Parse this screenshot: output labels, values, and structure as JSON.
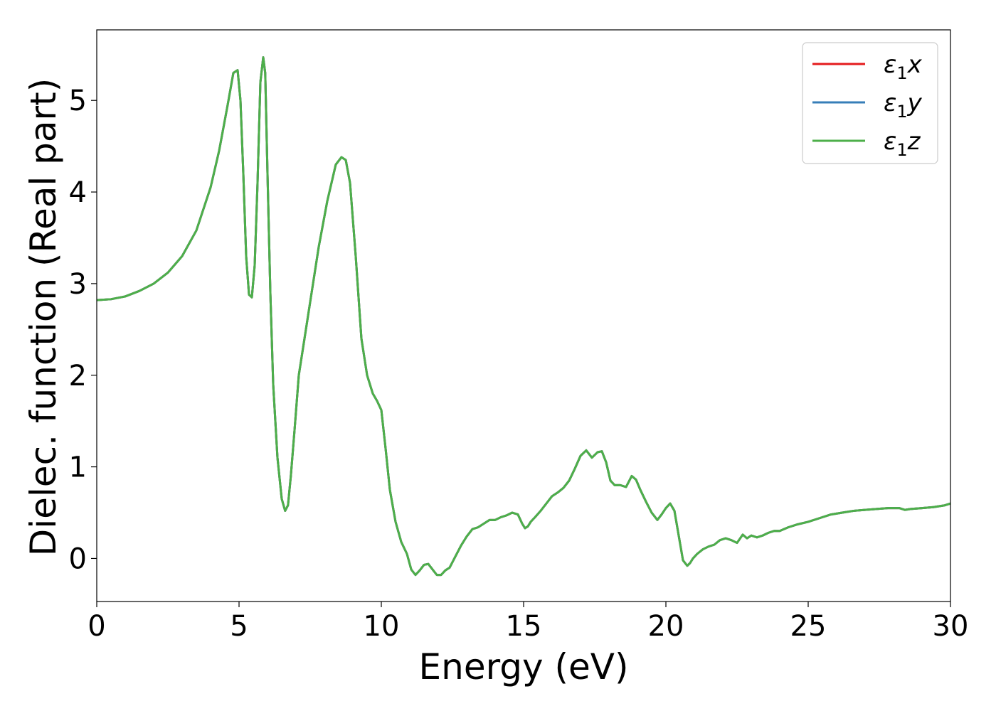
{
  "chart_data": {
    "type": "line",
    "title": "",
    "xlabel": "Energy (eV)",
    "ylabel": "Dielec. function (Real part)",
    "xlim": [
      0,
      30
    ],
    "ylim": [
      -0.47,
      5.77
    ],
    "xticks": [
      0,
      5,
      10,
      15,
      20,
      25,
      30
    ],
    "yticks": [
      0,
      1,
      2,
      3,
      4,
      5
    ],
    "grid": false,
    "legend_position": "top-right",
    "series": [
      {
        "name": "ε₁x",
        "legend_base": "ε",
        "legend_sub": "1",
        "legend_suffix": "x",
        "color": "#e41a1c",
        "x": [
          0,
          0.5,
          1,
          1.5,
          2,
          2.5,
          3,
          3.5,
          4,
          4.3,
          4.6,
          4.8,
          4.95,
          5.05,
          5.15,
          5.25,
          5.35,
          5.45,
          5.55,
          5.65,
          5.75,
          5.85,
          5.92,
          6.0,
          6.1,
          6.2,
          6.35,
          6.5,
          6.62,
          6.72,
          6.82,
          6.95,
          7.1,
          7.3,
          7.5,
          7.8,
          8.1,
          8.4,
          8.6,
          8.75,
          8.9,
          9.1,
          9.3,
          9.5,
          9.7,
          9.85,
          10.0,
          10.15,
          10.3,
          10.5,
          10.7,
          10.9,
          11.05,
          11.2,
          11.35,
          11.5,
          11.65,
          11.8,
          11.95,
          12.1,
          12.25,
          12.4,
          12.6,
          12.8,
          13.0,
          13.2,
          13.4,
          13.6,
          13.8,
          14.0,
          14.2,
          14.4,
          14.6,
          14.8,
          14.95,
          15.05,
          15.15,
          15.25,
          15.4,
          15.6,
          15.8,
          16.0,
          16.2,
          16.4,
          16.6,
          16.8,
          17.0,
          17.2,
          17.4,
          17.6,
          17.75,
          17.9,
          18.05,
          18.2,
          18.4,
          18.6,
          18.8,
          18.95,
          19.1,
          19.3,
          19.5,
          19.7,
          19.85,
          20.0,
          20.15,
          20.3,
          20.45,
          20.6,
          20.75,
          20.85,
          20.95,
          21.1,
          21.3,
          21.5,
          21.7,
          21.9,
          22.1,
          22.3,
          22.5,
          22.7,
          22.85,
          23.0,
          23.2,
          23.4,
          23.6,
          23.8,
          24.0,
          24.3,
          24.6,
          25.0,
          25.4,
          25.8,
          26.2,
          26.6,
          27.0,
          27.4,
          27.8,
          28.2,
          28.4,
          28.6,
          29.0,
          29.4,
          29.8,
          30.0
        ],
        "y": [
          2.82,
          2.83,
          2.86,
          2.92,
          3.0,
          3.12,
          3.3,
          3.58,
          4.05,
          4.45,
          4.95,
          5.3,
          5.33,
          5.0,
          4.2,
          3.3,
          2.88,
          2.85,
          3.2,
          4.1,
          5.2,
          5.47,
          5.3,
          4.2,
          2.9,
          1.9,
          1.1,
          0.65,
          0.52,
          0.58,
          0.9,
          1.4,
          2.0,
          2.4,
          2.8,
          3.4,
          3.9,
          4.3,
          4.38,
          4.35,
          4.1,
          3.3,
          2.4,
          2.0,
          1.8,
          1.72,
          1.62,
          1.2,
          0.75,
          0.4,
          0.18,
          0.05,
          -0.12,
          -0.18,
          -0.13,
          -0.07,
          -0.06,
          -0.12,
          -0.18,
          -0.18,
          -0.13,
          -0.1,
          0.02,
          0.14,
          0.24,
          0.32,
          0.34,
          0.38,
          0.42,
          0.42,
          0.45,
          0.47,
          0.5,
          0.48,
          0.38,
          0.33,
          0.35,
          0.4,
          0.45,
          0.52,
          0.6,
          0.68,
          0.72,
          0.77,
          0.85,
          0.98,
          1.12,
          1.18,
          1.1,
          1.16,
          1.17,
          1.05,
          0.85,
          0.8,
          0.8,
          0.78,
          0.9,
          0.86,
          0.75,
          0.62,
          0.5,
          0.42,
          0.48,
          0.55,
          0.6,
          0.52,
          0.25,
          -0.02,
          -0.08,
          -0.05,
          0.0,
          0.05,
          0.1,
          0.13,
          0.15,
          0.2,
          0.22,
          0.2,
          0.17,
          0.26,
          0.22,
          0.25,
          0.23,
          0.25,
          0.28,
          0.3,
          0.3,
          0.34,
          0.37,
          0.4,
          0.44,
          0.48,
          0.5,
          0.52,
          0.53,
          0.54,
          0.55,
          0.55,
          0.53,
          0.54,
          0.55,
          0.56,
          0.58,
          0.6
        ]
      },
      {
        "name": "ε₁y",
        "legend_base": "ε",
        "legend_sub": "1",
        "legend_suffix": "y",
        "color": "#377eb8",
        "x": [
          0,
          0.5,
          1,
          1.5,
          2,
          2.5,
          3,
          3.5,
          4,
          4.3,
          4.6,
          4.8,
          4.95,
          5.05,
          5.15,
          5.25,
          5.35,
          5.45,
          5.55,
          5.65,
          5.75,
          5.85,
          5.92,
          6.0,
          6.1,
          6.2,
          6.35,
          6.5,
          6.62,
          6.72,
          6.82,
          6.95,
          7.1,
          7.3,
          7.5,
          7.8,
          8.1,
          8.4,
          8.6,
          8.75,
          8.9,
          9.1,
          9.3,
          9.5,
          9.7,
          9.85,
          10.0,
          10.15,
          10.3,
          10.5,
          10.7,
          10.9,
          11.05,
          11.2,
          11.35,
          11.5,
          11.65,
          11.8,
          11.95,
          12.1,
          12.25,
          12.4,
          12.6,
          12.8,
          13.0,
          13.2,
          13.4,
          13.6,
          13.8,
          14.0,
          14.2,
          14.4,
          14.6,
          14.8,
          14.95,
          15.05,
          15.15,
          15.25,
          15.4,
          15.6,
          15.8,
          16.0,
          16.2,
          16.4,
          16.6,
          16.8,
          17.0,
          17.2,
          17.4,
          17.6,
          17.75,
          17.9,
          18.05,
          18.2,
          18.4,
          18.6,
          18.8,
          18.95,
          19.1,
          19.3,
          19.5,
          19.7,
          19.85,
          20.0,
          20.15,
          20.3,
          20.45,
          20.6,
          20.75,
          20.85,
          20.95,
          21.1,
          21.3,
          21.5,
          21.7,
          21.9,
          22.1,
          22.3,
          22.5,
          22.7,
          22.85,
          23.0,
          23.2,
          23.4,
          23.6,
          23.8,
          24.0,
          24.3,
          24.6,
          25.0,
          25.4,
          25.8,
          26.2,
          26.6,
          27.0,
          27.4,
          27.8,
          28.2,
          28.4,
          28.6,
          29.0,
          29.4,
          29.8,
          30.0
        ],
        "y": [
          2.82,
          2.83,
          2.86,
          2.92,
          3.0,
          3.12,
          3.3,
          3.58,
          4.05,
          4.45,
          4.95,
          5.3,
          5.33,
          5.0,
          4.2,
          3.3,
          2.88,
          2.85,
          3.2,
          4.1,
          5.2,
          5.47,
          5.3,
          4.2,
          2.9,
          1.9,
          1.1,
          0.65,
          0.52,
          0.58,
          0.9,
          1.4,
          2.0,
          2.4,
          2.8,
          3.4,
          3.9,
          4.3,
          4.38,
          4.35,
          4.1,
          3.3,
          2.4,
          2.0,
          1.8,
          1.72,
          1.62,
          1.2,
          0.75,
          0.4,
          0.18,
          0.05,
          -0.12,
          -0.18,
          -0.13,
          -0.07,
          -0.06,
          -0.12,
          -0.18,
          -0.18,
          -0.13,
          -0.1,
          0.02,
          0.14,
          0.24,
          0.32,
          0.34,
          0.38,
          0.42,
          0.42,
          0.45,
          0.47,
          0.5,
          0.48,
          0.38,
          0.33,
          0.35,
          0.4,
          0.45,
          0.52,
          0.6,
          0.68,
          0.72,
          0.77,
          0.85,
          0.98,
          1.12,
          1.18,
          1.1,
          1.16,
          1.17,
          1.05,
          0.85,
          0.8,
          0.8,
          0.78,
          0.9,
          0.86,
          0.75,
          0.62,
          0.5,
          0.42,
          0.48,
          0.55,
          0.6,
          0.52,
          0.25,
          -0.02,
          -0.08,
          -0.05,
          0.0,
          0.05,
          0.1,
          0.13,
          0.15,
          0.2,
          0.22,
          0.2,
          0.17,
          0.26,
          0.22,
          0.25,
          0.23,
          0.25,
          0.28,
          0.3,
          0.3,
          0.34,
          0.37,
          0.4,
          0.44,
          0.48,
          0.5,
          0.52,
          0.53,
          0.54,
          0.55,
          0.55,
          0.53,
          0.54,
          0.55,
          0.56,
          0.58,
          0.6
        ]
      },
      {
        "name": "ε₁z",
        "legend_base": "ε",
        "legend_sub": "1",
        "legend_suffix": "z",
        "color": "#4daf4a",
        "x": [
          0,
          0.5,
          1,
          1.5,
          2,
          2.5,
          3,
          3.5,
          4,
          4.3,
          4.6,
          4.8,
          4.95,
          5.05,
          5.15,
          5.25,
          5.35,
          5.45,
          5.55,
          5.65,
          5.75,
          5.85,
          5.92,
          6.0,
          6.1,
          6.2,
          6.35,
          6.5,
          6.62,
          6.72,
          6.82,
          6.95,
          7.1,
          7.3,
          7.5,
          7.8,
          8.1,
          8.4,
          8.6,
          8.75,
          8.9,
          9.1,
          9.3,
          9.5,
          9.7,
          9.85,
          10.0,
          10.15,
          10.3,
          10.5,
          10.7,
          10.9,
          11.05,
          11.2,
          11.35,
          11.5,
          11.65,
          11.8,
          11.95,
          12.1,
          12.25,
          12.4,
          12.6,
          12.8,
          13.0,
          13.2,
          13.4,
          13.6,
          13.8,
          14.0,
          14.2,
          14.4,
          14.6,
          14.8,
          14.95,
          15.05,
          15.15,
          15.25,
          15.4,
          15.6,
          15.8,
          16.0,
          16.2,
          16.4,
          16.6,
          16.8,
          17.0,
          17.2,
          17.4,
          17.6,
          17.75,
          17.9,
          18.05,
          18.2,
          18.4,
          18.6,
          18.8,
          18.95,
          19.1,
          19.3,
          19.5,
          19.7,
          19.85,
          20.0,
          20.15,
          20.3,
          20.45,
          20.6,
          20.75,
          20.85,
          20.95,
          21.1,
          21.3,
          21.5,
          21.7,
          21.9,
          22.1,
          22.3,
          22.5,
          22.7,
          22.85,
          23.0,
          23.2,
          23.4,
          23.6,
          23.8,
          24.0,
          24.3,
          24.6,
          25.0,
          25.4,
          25.8,
          26.2,
          26.6,
          27.0,
          27.4,
          27.8,
          28.2,
          28.4,
          28.6,
          29.0,
          29.4,
          29.8,
          30.0
        ],
        "y": [
          2.82,
          2.83,
          2.86,
          2.92,
          3.0,
          3.12,
          3.3,
          3.58,
          4.05,
          4.45,
          4.95,
          5.3,
          5.33,
          5.0,
          4.2,
          3.3,
          2.88,
          2.85,
          3.2,
          4.1,
          5.2,
          5.47,
          5.3,
          4.2,
          2.9,
          1.9,
          1.1,
          0.65,
          0.52,
          0.58,
          0.9,
          1.4,
          2.0,
          2.4,
          2.8,
          3.4,
          3.9,
          4.3,
          4.38,
          4.35,
          4.1,
          3.3,
          2.4,
          2.0,
          1.8,
          1.72,
          1.62,
          1.2,
          0.75,
          0.4,
          0.18,
          0.05,
          -0.12,
          -0.18,
          -0.13,
          -0.07,
          -0.06,
          -0.12,
          -0.18,
          -0.18,
          -0.13,
          -0.1,
          0.02,
          0.14,
          0.24,
          0.32,
          0.34,
          0.38,
          0.42,
          0.42,
          0.45,
          0.47,
          0.5,
          0.48,
          0.38,
          0.33,
          0.35,
          0.4,
          0.45,
          0.52,
          0.6,
          0.68,
          0.72,
          0.77,
          0.85,
          0.98,
          1.12,
          1.18,
          1.1,
          1.16,
          1.17,
          1.05,
          0.85,
          0.8,
          0.8,
          0.78,
          0.9,
          0.86,
          0.75,
          0.62,
          0.5,
          0.42,
          0.48,
          0.55,
          0.6,
          0.52,
          0.25,
          -0.02,
          -0.08,
          -0.05,
          0.0,
          0.05,
          0.1,
          0.13,
          0.15,
          0.2,
          0.22,
          0.2,
          0.17,
          0.26,
          0.22,
          0.25,
          0.23,
          0.25,
          0.28,
          0.3,
          0.3,
          0.34,
          0.37,
          0.4,
          0.44,
          0.48,
          0.5,
          0.52,
          0.53,
          0.54,
          0.55,
          0.55,
          0.53,
          0.54,
          0.55,
          0.56,
          0.58,
          0.6
        ]
      }
    ]
  }
}
